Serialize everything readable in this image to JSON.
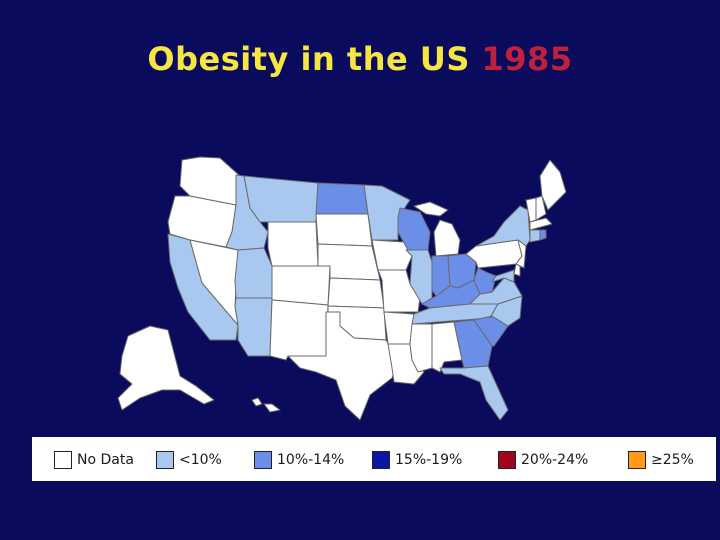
{
  "title": {
    "main": "Obesity in the US",
    "year": "1985"
  },
  "colors": {
    "background": "#0b0b5e",
    "no_data": "#ffffff",
    "lt10": "#a9c8f0",
    "p10_14": "#6b8ee8",
    "p15_19": "#0a17a6",
    "p20_24": "#a0051c",
    "ge25": "#ff9a1a",
    "border": "#6a6a6a"
  },
  "legend": {
    "items": [
      {
        "label": "No Data",
        "color": "#ffffff"
      },
      {
        "label": "<10%",
        "color": "#a9c8f0"
      },
      {
        "label": "10%-14%",
        "color": "#6b8ee8"
      },
      {
        "label": "15%-19%",
        "color": "#0a17a6"
      },
      {
        "label": "20%-24%",
        "color": "#a0051c"
      },
      {
        "label": "≥25%",
        "color": "#ff9a1a"
      }
    ]
  },
  "states": [
    {
      "name": "WA",
      "category": "no_data"
    },
    {
      "name": "OR",
      "category": "no_data"
    },
    {
      "name": "CA",
      "category": "lt10"
    },
    {
      "name": "NV",
      "category": "no_data"
    },
    {
      "name": "ID",
      "category": "lt10"
    },
    {
      "name": "MT",
      "category": "lt10"
    },
    {
      "name": "WY",
      "category": "no_data"
    },
    {
      "name": "UT",
      "category": "lt10"
    },
    {
      "name": "AZ",
      "category": "lt10"
    },
    {
      "name": "CO",
      "category": "no_data"
    },
    {
      "name": "NM",
      "category": "no_data"
    },
    {
      "name": "ND",
      "category": "p10_14"
    },
    {
      "name": "SD",
      "category": "no_data"
    },
    {
      "name": "NE",
      "category": "no_data"
    },
    {
      "name": "KS",
      "category": "no_data"
    },
    {
      "name": "OK",
      "category": "no_data"
    },
    {
      "name": "TX",
      "category": "no_data"
    },
    {
      "name": "MN",
      "category": "lt10"
    },
    {
      "name": "IA",
      "category": "no_data"
    },
    {
      "name": "MO",
      "category": "no_data"
    },
    {
      "name": "AR",
      "category": "no_data"
    },
    {
      "name": "LA",
      "category": "no_data"
    },
    {
      "name": "WI",
      "category": "p10_14"
    },
    {
      "name": "IL",
      "category": "lt10"
    },
    {
      "name": "MI",
      "category": "no_data"
    },
    {
      "name": "IN",
      "category": "p10_14"
    },
    {
      "name": "OH",
      "category": "p10_14"
    },
    {
      "name": "KY",
      "category": "p10_14"
    },
    {
      "name": "TN",
      "category": "lt10"
    },
    {
      "name": "MS",
      "category": "no_data"
    },
    {
      "name": "AL",
      "category": "no_data"
    },
    {
      "name": "GA",
      "category": "p10_14"
    },
    {
      "name": "FL",
      "category": "lt10"
    },
    {
      "name": "SC",
      "category": "p10_14"
    },
    {
      "name": "NC",
      "category": "lt10"
    },
    {
      "name": "VA",
      "category": "lt10"
    },
    {
      "name": "WV",
      "category": "p10_14"
    },
    {
      "name": "PA",
      "category": "no_data"
    },
    {
      "name": "NY",
      "category": "lt10"
    },
    {
      "name": "VT",
      "category": "no_data"
    },
    {
      "name": "NH",
      "category": "no_data"
    },
    {
      "name": "ME",
      "category": "no_data"
    },
    {
      "name": "MA",
      "category": "no_data"
    },
    {
      "name": "CT",
      "category": "lt10"
    },
    {
      "name": "RI",
      "category": "p10_14"
    },
    {
      "name": "NJ",
      "category": "no_data"
    },
    {
      "name": "DE",
      "category": "no_data"
    },
    {
      "name": "MD",
      "category": "lt10"
    },
    {
      "name": "AK",
      "category": "no_data"
    },
    {
      "name": "HI",
      "category": "no_data"
    }
  ]
}
